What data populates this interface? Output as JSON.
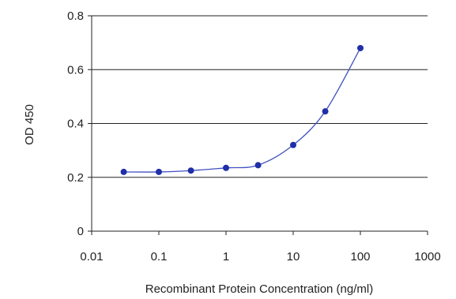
{
  "chart_data": {
    "type": "line",
    "title": "",
    "xlabel": "Recombinant Protein Concentration (ng/ml)",
    "ylabel": "OD 450",
    "x_scale": "log",
    "xlim": [
      0.01,
      1000
    ],
    "ylim": [
      0,
      0.8
    ],
    "x_ticks": [
      "0.01",
      "0.1",
      "1",
      "10",
      "100",
      "1000"
    ],
    "y_ticks": [
      "0",
      "0.2",
      "0.4",
      "0.6",
      "0.8"
    ],
    "grid": "horizontal",
    "series": [
      {
        "color": "#1f2fa8",
        "points": [
          {
            "x": 0.03,
            "y": 0.22
          },
          {
            "x": 0.1,
            "y": 0.22
          },
          {
            "x": 0.3,
            "y": 0.225
          },
          {
            "x": 1,
            "y": 0.235
          },
          {
            "x": 3,
            "y": 0.245
          },
          {
            "x": 10,
            "y": 0.32
          },
          {
            "x": 30,
            "y": 0.445
          },
          {
            "x": 100,
            "y": 0.68
          }
        ]
      }
    ]
  }
}
